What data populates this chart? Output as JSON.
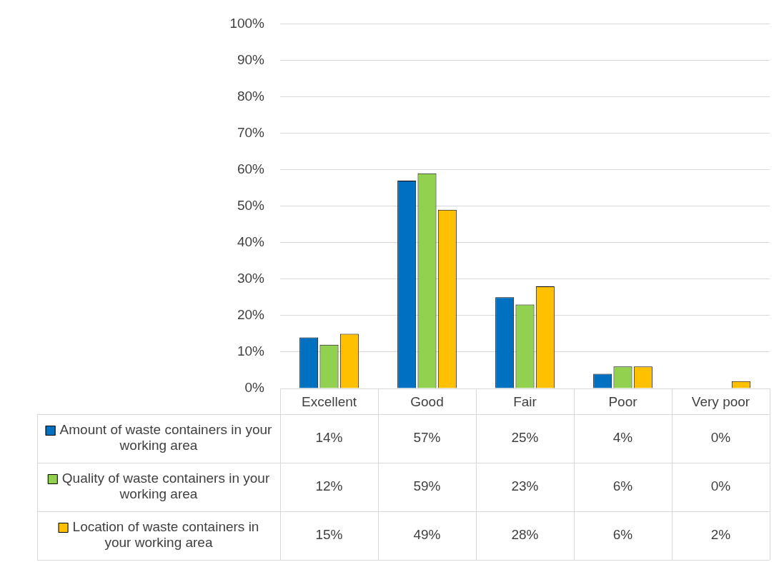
{
  "chart_data": {
    "type": "bar",
    "categories": [
      "Excellent",
      "Good",
      "Fair",
      "Poor",
      "Very poor"
    ],
    "series": [
      {
        "name": "Amount of waste containers in your working area",
        "color": "#0070c0",
        "values": [
          14,
          57,
          25,
          4,
          0
        ],
        "value_labels": [
          "14%",
          "57%",
          "25%",
          "4%",
          "0%"
        ]
      },
      {
        "name": "Quality of waste containers in your working area",
        "color": "#92d050",
        "values": [
          12,
          59,
          23,
          6,
          0
        ],
        "value_labels": [
          "12%",
          "59%",
          "23%",
          "6%",
          "0%"
        ]
      },
      {
        "name": "Location of waste containers in your working area",
        "color": "#ffc000",
        "values": [
          15,
          49,
          28,
          6,
          2
        ],
        "value_labels": [
          "15%",
          "49%",
          "28%",
          "6%",
          "2%"
        ]
      }
    ],
    "ylim": [
      0,
      100
    ],
    "yticks": [
      {
        "value": 0,
        "label": "0%"
      },
      {
        "value": 10,
        "label": "10%"
      },
      {
        "value": 20,
        "label": "20%"
      },
      {
        "value": 30,
        "label": "30%"
      },
      {
        "value": 40,
        "label": "40%"
      },
      {
        "value": 50,
        "label": "50%"
      },
      {
        "value": 60,
        "label": "60%"
      },
      {
        "value": 70,
        "label": "70%"
      },
      {
        "value": 80,
        "label": "80%"
      },
      {
        "value": 90,
        "label": "90%"
      },
      {
        "value": 100,
        "label": "100%"
      }
    ],
    "grid": "y",
    "legend": "bottom"
  }
}
